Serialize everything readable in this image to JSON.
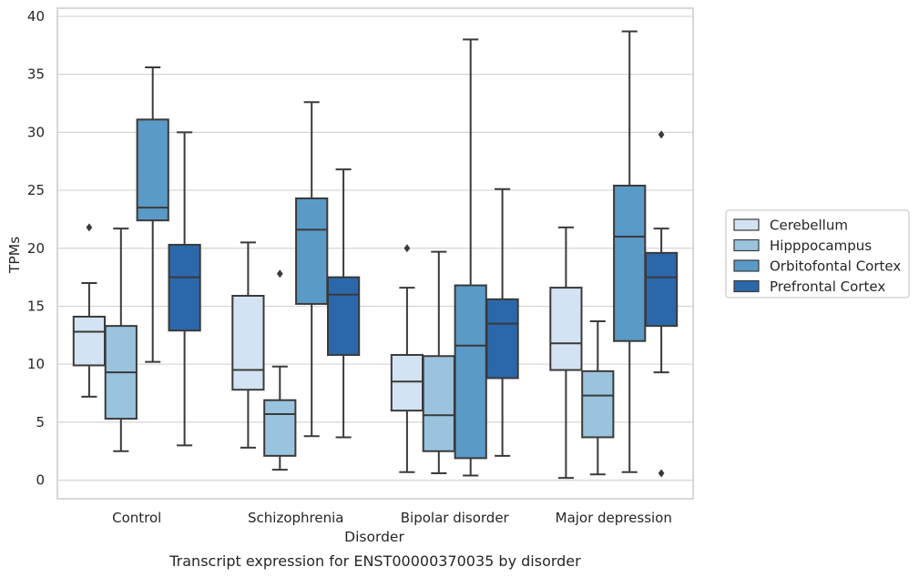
{
  "chart_data": {
    "type": "box",
    "caption": "Transcript expression for ENST00000370035 by disorder",
    "xlabel": "Disorder",
    "ylabel": "TPMs",
    "ylim": [
      -1.6,
      40.7
    ],
    "yticks": [
      0,
      5,
      10,
      15,
      20,
      25,
      30,
      35,
      40
    ],
    "grid": "horizontal",
    "legend_position": "right",
    "categories": [
      "Control",
      "Schizophrenia",
      "Bipolar disorder",
      "Major depression"
    ],
    "series": [
      {
        "name": "Cerebellum",
        "color": "#d3e3f3",
        "boxes": [
          {
            "whislo": 7.2,
            "q1": 9.9,
            "med": 12.8,
            "q3": 14.1,
            "whishi": 17.0,
            "fliers": [
              21.8
            ]
          },
          {
            "whislo": 2.8,
            "q1": 7.8,
            "med": 9.5,
            "q3": 15.9,
            "whishi": 20.5,
            "fliers": []
          },
          {
            "whislo": 0.7,
            "q1": 6.0,
            "med": 8.5,
            "q3": 10.8,
            "whishi": 16.6,
            "fliers": [
              20.0
            ]
          },
          {
            "whislo": 0.2,
            "q1": 9.5,
            "med": 11.8,
            "q3": 16.6,
            "whishi": 21.8,
            "fliers": []
          }
        ]
      },
      {
        "name": "Hipppocampus",
        "color": "#9ac4de",
        "boxes": [
          {
            "whislo": 2.5,
            "q1": 5.3,
            "med": 9.3,
            "q3": 13.3,
            "whishi": 21.7,
            "fliers": []
          },
          {
            "whislo": 0.9,
            "q1": 2.1,
            "med": 5.7,
            "q3": 6.9,
            "whishi": 9.8,
            "fliers": [
              17.8
            ]
          },
          {
            "whislo": 0.6,
            "q1": 2.5,
            "med": 5.6,
            "q3": 10.7,
            "whishi": 19.7,
            "fliers": []
          },
          {
            "whislo": 0.5,
            "q1": 3.7,
            "med": 7.3,
            "q3": 9.4,
            "whishi": 13.7,
            "fliers": []
          }
        ]
      },
      {
        "name": "Orbitofontal Cortex",
        "color": "#5a9ac7",
        "boxes": [
          {
            "whislo": 10.2,
            "q1": 22.4,
            "med": 23.5,
            "q3": 31.1,
            "whishi": 35.6,
            "fliers": []
          },
          {
            "whislo": 3.8,
            "q1": 15.2,
            "med": 21.6,
            "q3": 24.3,
            "whishi": 32.6,
            "fliers": []
          },
          {
            "whislo": 0.4,
            "q1": 1.9,
            "med": 11.6,
            "q3": 16.8,
            "whishi": 38.0,
            "fliers": []
          },
          {
            "whislo": 0.7,
            "q1": 12.0,
            "med": 21.0,
            "q3": 25.4,
            "whishi": 38.7,
            "fliers": []
          }
        ]
      },
      {
        "name": "Prefrontal Cortex",
        "color": "#2b68ab",
        "boxes": [
          {
            "whislo": 3.0,
            "q1": 12.9,
            "med": 17.5,
            "q3": 20.3,
            "whishi": 30.0,
            "fliers": []
          },
          {
            "whislo": 3.7,
            "q1": 10.8,
            "med": 16.0,
            "q3": 17.5,
            "whishi": 26.8,
            "fliers": []
          },
          {
            "whislo": 2.1,
            "q1": 8.8,
            "med": 13.5,
            "q3": 15.6,
            "whishi": 25.1,
            "fliers": []
          },
          {
            "whislo": 9.3,
            "q1": 13.3,
            "med": 17.5,
            "q3": 19.6,
            "whishi": 21.7,
            "fliers": [
              0.6,
              29.8
            ]
          }
        ]
      }
    ]
  }
}
